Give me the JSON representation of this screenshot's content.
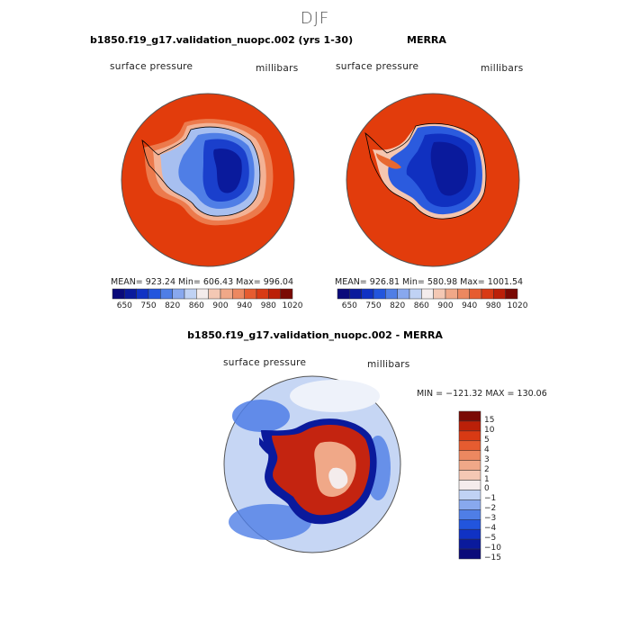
{
  "season": "DJF",
  "panels": [
    {
      "title": "b1850.f19_g17.validation_nuopc.002 (yrs 1-30)",
      "field": "surface pressure",
      "units": "millibars",
      "stats": "MEAN= 923.24   Min= 606.43   Max= 996.04"
    },
    {
      "title": "MERRA",
      "field": "surface pressure",
      "units": "millibars",
      "stats": "MEAN= 926.81   Min= 580.98   Max= 1001.54"
    },
    {
      "title": "b1850.f19_g17.validation_nuopc.002 - MERRA",
      "field": "surface pressure",
      "units": "millibars",
      "stats": "MIN = −121.32 MAX = 130.06"
    }
  ],
  "colors": {
    "abs_bins": [
      "#0a0a7a",
      "#0a1a9c",
      "#1032c4",
      "#2255dd",
      "#4f7ee6",
      "#88a8ee",
      "#c0d2f4",
      "#f4ecec",
      "#f4c8b4",
      "#f0a888",
      "#ec8860",
      "#e65c30",
      "#d83a14",
      "#bb2008",
      "#7a0a04"
    ],
    "diff_bins": [
      "#0a0a7a",
      "#0a1a9c",
      "#1032c4",
      "#2255dd",
      "#4f7ee6",
      "#88a8ee",
      "#c0d2f4",
      "#f4ecec",
      "#f4c8b4",
      "#f0a888",
      "#ec8860",
      "#e65c30",
      "#d83a14",
      "#bb2008",
      "#7a0a04"
    ]
  },
  "chart_data": [
    {
      "type": "heatmap",
      "title": "b1850.f19_g17.validation_nuopc.002 (yrs 1-30)",
      "variable": "surface pressure",
      "units": "millibars",
      "projection": "south polar stereographic",
      "mean": 923.24,
      "min": 606.43,
      "max": 996.04,
      "colorbar_levels": [
        650,
        700,
        750,
        780,
        820,
        840,
        860,
        880,
        900,
        920,
        940,
        960,
        980,
        1000,
        1020
      ],
      "colorbar_tick_labels": [
        "650",
        "750",
        "820",
        "860",
        "900",
        "940",
        "980",
        "1020"
      ]
    },
    {
      "type": "heatmap",
      "title": "MERRA",
      "variable": "surface pressure",
      "units": "millibars",
      "projection": "south polar stereographic",
      "mean": 926.81,
      "min": 580.98,
      "max": 1001.54,
      "colorbar_levels": [
        650,
        700,
        750,
        780,
        820,
        840,
        860,
        880,
        900,
        920,
        940,
        960,
        980,
        1000,
        1020
      ],
      "colorbar_tick_labels": [
        "650",
        "750",
        "820",
        "860",
        "900",
        "940",
        "980",
        "1020"
      ]
    },
    {
      "type": "heatmap",
      "title": "b1850.f19_g17.validation_nuopc.002 - MERRA",
      "variable": "surface pressure",
      "units": "millibars",
      "projection": "south polar stereographic",
      "min": -121.32,
      "max": 130.06,
      "colorbar_levels": [
        -15,
        -10,
        -5,
        -4,
        -3,
        -2,
        -1,
        0,
        1,
        2,
        3,
        4,
        5,
        10,
        15
      ],
      "colorbar_tick_labels": [
        "15",
        "10",
        "5",
        "4",
        "3",
        "2",
        "1",
        "0",
        "−1",
        "−2",
        "−3",
        "−4",
        "−5",
        "−10",
        "−15"
      ]
    }
  ]
}
